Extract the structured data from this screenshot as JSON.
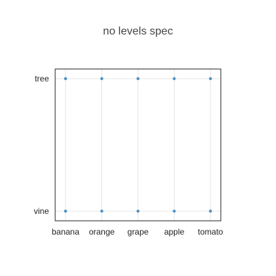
{
  "chart_data": {
    "type": "scatter",
    "title": "no levels spec",
    "xlabel": "",
    "ylabel": "",
    "x_categories": [
      "banana",
      "orange",
      "grape",
      "apple",
      "tomato"
    ],
    "y_categories": [
      "vine",
      "tree"
    ],
    "grid": true,
    "legend": "none",
    "series": [
      {
        "points": [
          {
            "x": "banana",
            "y": "tree"
          },
          {
            "x": "orange",
            "y": "tree"
          },
          {
            "x": "grape",
            "y": "tree"
          },
          {
            "x": "apple",
            "y": "tree"
          },
          {
            "x": "tomato",
            "y": "tree"
          },
          {
            "x": "banana",
            "y": "vine"
          },
          {
            "x": "orange",
            "y": "vine"
          },
          {
            "x": "grape",
            "y": "vine"
          },
          {
            "x": "apple",
            "y": "vine"
          },
          {
            "x": "tomato",
            "y": "vine"
          }
        ],
        "color": "#4e93c3"
      }
    ]
  }
}
